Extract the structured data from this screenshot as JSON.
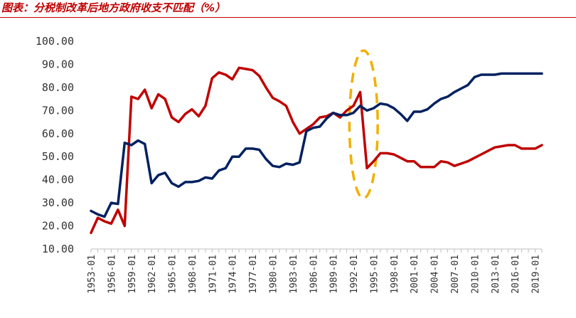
{
  "title": "图表：分税制改革后地方政府收支不匹配（%）",
  "chart_data": {
    "type": "line",
    "title": "图表：分税制改革后地方政府收支不匹配（%）",
    "xlabel": "",
    "ylabel": "",
    "ylim": [
      10,
      100
    ],
    "y_ticks": [
      "10.00",
      "20.00",
      "30.00",
      "40.00",
      "50.00",
      "60.00",
      "70.00",
      "80.00",
      "90.00",
      "100.00"
    ],
    "x_tick_labels": [
      "1953-01",
      "1956-01",
      "1959-01",
      "1962-01",
      "1965-01",
      "1968-01",
      "1971-01",
      "1974-01",
      "1977-01",
      "1980-01",
      "1983-01",
      "1986-01",
      "1989-01",
      "1992-01",
      "1995-01",
      "1998-01",
      "2001-01",
      "2004-01",
      "2007-01",
      "2010-01",
      "2013-01",
      "2016-01",
      "2019-01"
    ],
    "x": [
      1953,
      1954,
      1955,
      1956,
      1957,
      1958,
      1959,
      1960,
      1961,
      1962,
      1963,
      1964,
      1965,
      1966,
      1967,
      1968,
      1969,
      1970,
      1971,
      1972,
      1973,
      1974,
      1975,
      1976,
      1977,
      1978,
      1979,
      1980,
      1981,
      1982,
      1983,
      1984,
      1985,
      1986,
      1987,
      1988,
      1989,
      1990,
      1991,
      1992,
      1993,
      1994,
      1995,
      1996,
      1997,
      1998,
      1999,
      2000,
      2001,
      2002,
      2003,
      2004,
      2005,
      2006,
      2007,
      2008,
      2009,
      2010,
      2011,
      2012,
      2013,
      2014,
      2015,
      2016,
      2017,
      2018,
      2019,
      2020
    ],
    "series": [
      {
        "color": "#c00000",
        "values": [
          17,
          23.5,
          22,
          21,
          27,
          20,
          76,
          75,
          79,
          71,
          77,
          75,
          67,
          65,
          68.5,
          70.5,
          67.5,
          72,
          84,
          86.5,
          85.5,
          83.5,
          88.5,
          88,
          87.5,
          85,
          80,
          75.5,
          74,
          72,
          65,
          60,
          62,
          64,
          67,
          67.5,
          69,
          67,
          70,
          72,
          78,
          45,
          48,
          51.5,
          51.5,
          51,
          49.5,
          48,
          48,
          45.5,
          45.5,
          45.5,
          48,
          47.5,
          46,
          47,
          48,
          49.5,
          51,
          52.5,
          54,
          54.5,
          55,
          55,
          53.5,
          53.5,
          53.5,
          55
        ]
      },
      {
        "color": "#002060",
        "values": [
          26.5,
          25,
          24,
          30,
          29.5,
          56,
          55,
          57,
          55.5,
          38.5,
          42,
          43,
          38.5,
          37,
          39,
          39,
          39.5,
          41,
          40.5,
          44,
          45,
          50,
          50,
          53.5,
          53.5,
          53,
          49,
          46,
          45.5,
          47,
          46.5,
          47.5,
          61,
          62.5,
          63,
          66.5,
          69,
          68,
          68,
          69,
          72,
          70,
          71,
          73,
          72.5,
          71,
          68.5,
          65.5,
          69.5,
          69.5,
          70.5,
          73,
          75,
          76,
          78,
          79.5,
          81,
          84.5,
          85.5,
          85.5,
          85.5,
          86,
          86,
          86,
          86,
          86,
          86,
          86
        ]
      }
    ],
    "annotation": {
      "type": "dashed-ellipse",
      "color": "#f0b000",
      "x_center": 1993.5,
      "y_center": 64,
      "x_radius": 2.1,
      "y_radius": 32
    }
  }
}
